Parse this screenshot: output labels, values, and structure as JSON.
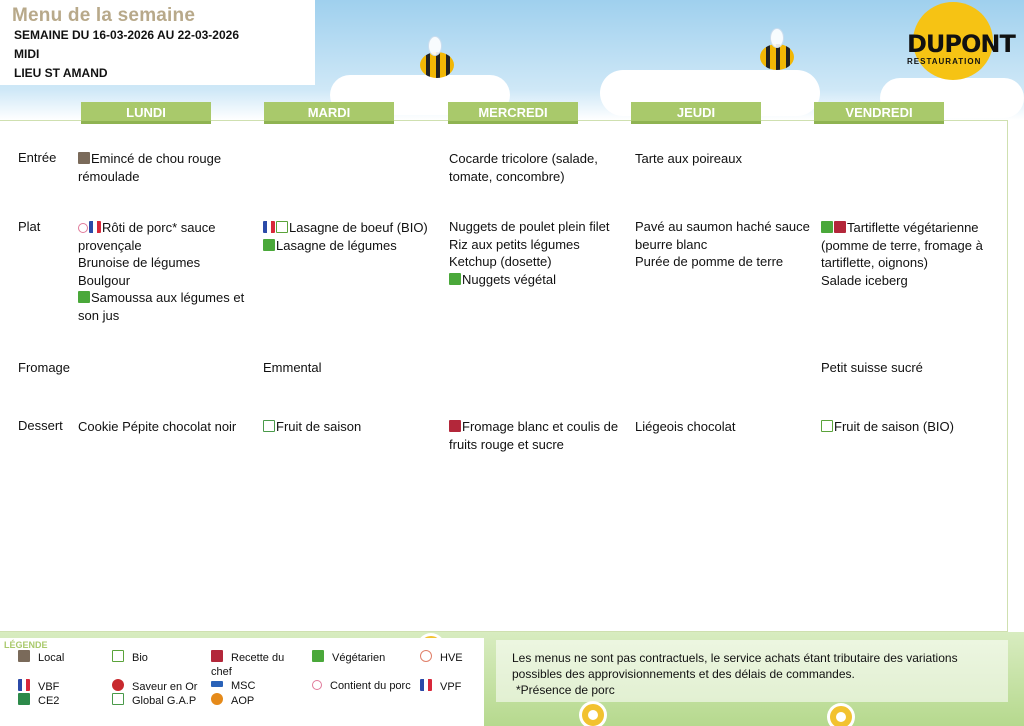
{
  "header": {
    "title": "Menu de la semaine",
    "week": "SEMAINE DU 16-03-2026 AU 22-03-2026",
    "meal": "MIDI",
    "place": "LIEU ST AMAND"
  },
  "logo": {
    "name": "DUPONT",
    "sub": "RESTAURATION",
    "color": "#f6c314"
  },
  "days": [
    "LUNDI",
    "MARDI",
    "MERCREDI",
    "JEUDI",
    "VENDREDI"
  ],
  "rows": [
    "Entrée",
    "Plat",
    "Fromage",
    "Dessert"
  ],
  "menu": {
    "entree": {
      "lundi": [
        {
          "icons": [
            "local"
          ],
          "text": "Emincé de chou rouge rémoulade"
        }
      ],
      "mercredi": [
        {
          "icons": [],
          "text": "Cocarde tricolore (salade, tomate, concombre)"
        }
      ],
      "jeudi": [
        {
          "icons": [],
          "text": "Tarte aux poireaux"
        }
      ]
    },
    "plat": {
      "lundi": [
        {
          "icons": [
            "pork",
            "vpf"
          ],
          "text": "Rôti de porc* sauce provençale"
        },
        {
          "icons": [],
          "text": "Brunoise de légumes"
        },
        {
          "icons": [],
          "text": "Boulgour"
        },
        {
          "icons": [
            "veg"
          ],
          "text": "Samoussa aux légumes et son jus"
        }
      ],
      "mardi": [
        {
          "icons": [
            "vbf",
            "bio"
          ],
          "text": "Lasagne de boeuf (BIO)"
        },
        {
          "icons": [
            "veg"
          ],
          "text": "Lasagne de légumes"
        }
      ],
      "mercredi": [
        {
          "icons": [],
          "text": "Nuggets de poulet plein filet"
        },
        {
          "icons": [],
          "text": "Riz aux petits légumes"
        },
        {
          "icons": [],
          "text": "Ketchup (dosette)"
        },
        {
          "icons": [
            "veg"
          ],
          "text": "Nuggets végétal"
        }
      ],
      "jeudi": [
        {
          "icons": [],
          "text": "Pavé au saumon haché sauce beurre blanc"
        },
        {
          "icons": [],
          "text": "Purée de pomme de terre"
        }
      ],
      "vendredi": [
        {
          "icons": [
            "veg",
            "chef"
          ],
          "text": "Tartiflette végétarienne (pomme de terre, fromage à tartiflette, oignons)"
        },
        {
          "icons": [],
          "text": "Salade iceberg"
        }
      ]
    },
    "fromage": {
      "mardi": [
        {
          "icons": [],
          "text": "Emmental"
        }
      ],
      "vendredi": [
        {
          "icons": [],
          "text": "Petit suisse sucré"
        }
      ]
    },
    "dessert": {
      "lundi": [
        {
          "icons": [],
          "text": "Cookie Pépite chocolat noir"
        }
      ],
      "mardi": [
        {
          "icons": [
            "gap"
          ],
          "text": "Fruit de saison"
        }
      ],
      "mercredi": [
        {
          "icons": [
            "chef"
          ],
          "text": "Fromage blanc et coulis de fruits rouge et sucre"
        }
      ],
      "jeudi": [
        {
          "icons": [],
          "text": "Liégeois chocolat"
        }
      ],
      "vendredi": [
        {
          "icons": [
            "bio"
          ],
          "text": "Fruit de saison (BIO)"
        }
      ]
    }
  },
  "legend": {
    "title": "LÉGENDE",
    "items": {
      "local": "Local",
      "bio": "Bio",
      "chef": "Recette du chef",
      "veg": "Végétarien",
      "hve": "HVE",
      "vbf": "VBF",
      "saveur": "Saveur en Or",
      "msc": "MSC",
      "pork": "Contient du porc",
      "vpf": "VPF",
      "ce2": "CE2",
      "gap": "Global G.A.P",
      "aop": "AOP"
    }
  },
  "notice": {
    "text": "Les menus ne sont pas contractuels, le service achats étant tributaire des variations possibles des approvisionnements et des délais de commandes.",
    "pork_note": "*Présence de porc"
  }
}
